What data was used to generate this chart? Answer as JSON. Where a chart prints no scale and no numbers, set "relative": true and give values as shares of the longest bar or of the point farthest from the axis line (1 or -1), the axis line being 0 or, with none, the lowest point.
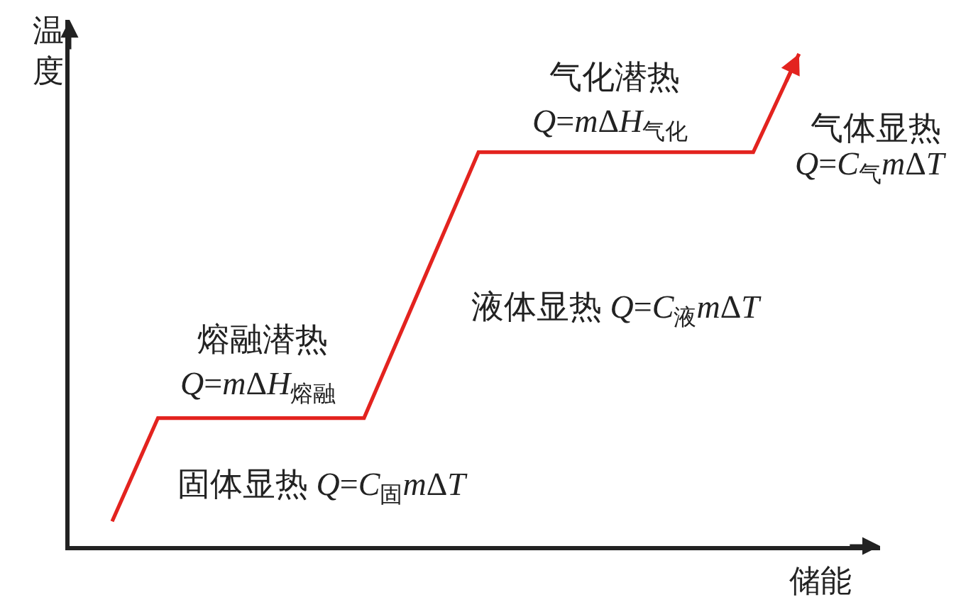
{
  "chart_data": {
    "type": "line",
    "relative": true,
    "xlabel": "储能",
    "ylabel": "温度",
    "categories": [
      null,
      null,
      null,
      null,
      null,
      null,
      null,
      null,
      null,
      null,
      null,
      null,
      null,
      null,
      null,
      null,
      null,
      null,
      null,
      null,
      null,
      null,
      null,
      null,
      null,
      null,
      null,
      null,
      null,
      null,
      null
    ],
    "series": [
      {
        "color": "#e3231f",
        "values": [
          0.05,
          0.155,
          0.26,
          0.26,
          0.26,
          0.26,
          0.26,
          0.26,
          0.26,
          0.26,
          0.26,
          0.26,
          0.368,
          0.476,
          0.584,
          0.692,
          0.8,
          0.8,
          0.8,
          0.8,
          0.8,
          0.8,
          0.8,
          0.8,
          0.8,
          0.8,
          0.8,
          0.8,
          0.8,
          0.9,
          1.0
        ]
      }
    ],
    "annotations": [
      "熔融潜热",
      "Q=mΔH$_{熔融}$",
      "固体显热 Q=C$_{固}$mΔT",
      "气化潜热",
      "Q=mΔH$_{气化}$",
      "气体显热",
      "Q=C$_{气}$mΔT",
      "液体显热 Q=C$_{液}$mΔT"
    ]
  }
}
